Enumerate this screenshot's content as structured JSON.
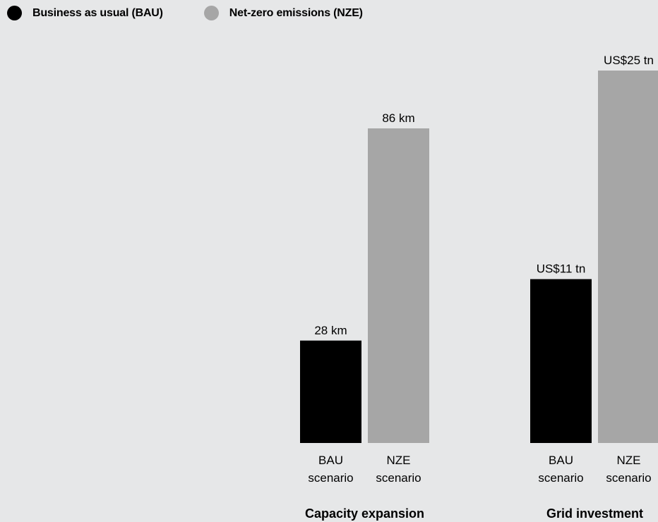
{
  "colors": {
    "bau": "#000000",
    "nze": "#a6a6a6",
    "background": "#e6e7e8"
  },
  "legend": [
    {
      "label": "Business as usual (BAU)",
      "color": "#000000"
    },
    {
      "label": "Net-zero emissions (NZE)",
      "color": "#a6a6a6"
    }
  ],
  "chart_data": [
    {
      "type": "bar",
      "title": "Capacity expansion",
      "categories": [
        "BAU scenario",
        "NZE scenario"
      ],
      "category_lines": [
        [
          "BAU",
          "scenario"
        ],
        [
          "NZE",
          "scenario"
        ]
      ],
      "values": [
        28,
        86
      ],
      "value_labels": [
        "28 km",
        "86 km"
      ],
      "colors": [
        "#000000",
        "#a6a6a6"
      ],
      "unit": "km"
    },
    {
      "type": "bar",
      "title": "Grid investment",
      "categories": [
        "BAU scenario",
        "NZE scenario"
      ],
      "category_lines": [
        [
          "BAU",
          "scenario"
        ],
        [
          "NZE",
          "scenario"
        ]
      ],
      "values": [
        11,
        25
      ],
      "value_labels": [
        "US$11 tn",
        "US$25 tn"
      ],
      "colors": [
        "#000000",
        "#a6a6a6"
      ],
      "unit": "US$ tn"
    }
  ]
}
